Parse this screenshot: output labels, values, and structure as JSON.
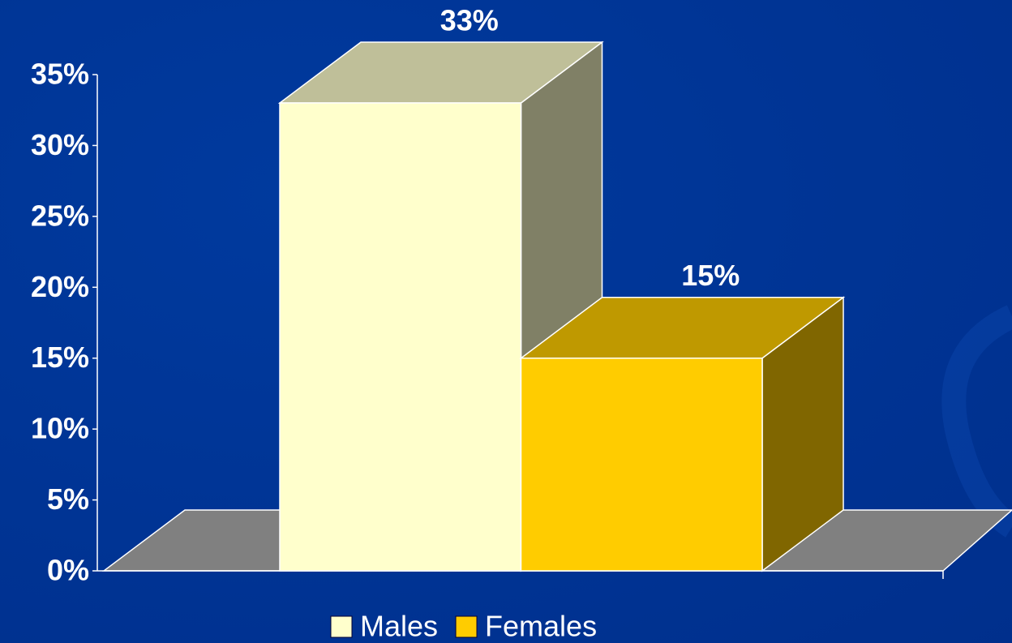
{
  "chart_data": {
    "type": "bar3d",
    "categories": [
      null
    ],
    "series": [
      {
        "name": "Males",
        "color": "#ffffcc",
        "values": [
          33
        ],
        "value_labels": [
          "33%"
        ]
      },
      {
        "name": "Females",
        "color": "#ffcc00",
        "values": [
          15
        ],
        "value_labels": [
          "15%"
        ]
      }
    ],
    "ylim": [
      0,
      35
    ],
    "yticks": [
      {
        "value": 0,
        "label": "0%"
      },
      {
        "value": 5,
        "label": "5%"
      },
      {
        "value": 10,
        "label": "10%"
      },
      {
        "value": 15,
        "label": "15%"
      },
      {
        "value": 20,
        "label": "20%"
      },
      {
        "value": 25,
        "label": "25%"
      },
      {
        "value": 30,
        "label": "30%"
      },
      {
        "value": 35,
        "label": "35%"
      }
    ],
    "legend": "bottom"
  }
}
